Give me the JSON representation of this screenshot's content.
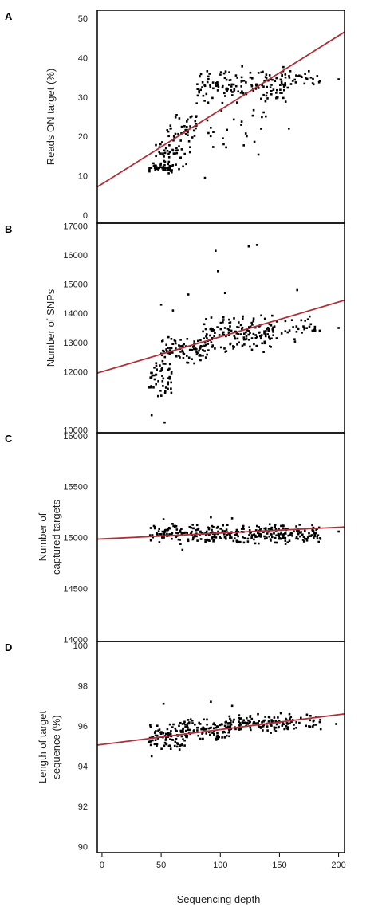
{
  "figure": {
    "xlabel": "Sequencing depth",
    "xticks": [
      0,
      50,
      100,
      150,
      200
    ],
    "xlim": [
      -4,
      205
    ]
  },
  "chart_data": [
    {
      "type": "scatter",
      "panel": "A",
      "ylabel": "Reads ON target (%)",
      "ylim": [
        -2,
        52
      ],
      "yticks": [
        0,
        10,
        20,
        30,
        40,
        50
      ],
      "fit_line": {
        "x": [
          -4,
          205
        ],
        "y": [
          7.2,
          46.5
        ]
      },
      "point_color": "#000000",
      "line_color": "#b03038",
      "clusters": [
        {
          "x_range": [
            40,
            60
          ],
          "y_range": [
            10,
            14
          ],
          "count": 45
        },
        {
          "x_range": [
            42,
            72
          ],
          "y_range": [
            11,
            20
          ],
          "count": 30
        },
        {
          "x_range": [
            55,
            80
          ],
          "y_range": [
            14,
            28
          ],
          "count": 55
        },
        {
          "x_range": [
            80,
            160
          ],
          "y_range": [
            28,
            38
          ],
          "count": 150
        },
        {
          "x_range": [
            88,
            140
          ],
          "y_range": [
            15,
            28
          ],
          "count": 25
        },
        {
          "x_range": [
            150,
            185
          ],
          "y_range": [
            32,
            37
          ],
          "count": 25
        }
      ],
      "extra_points": [
        {
          "x": 87,
          "y": 9.5
        },
        {
          "x": 158,
          "y": 22
        },
        {
          "x": 200,
          "y": 34.5
        }
      ]
    },
    {
      "type": "scatter",
      "panel": "B",
      "ylabel": "Number of SNPs",
      "ylim": [
        9900,
        17100
      ],
      "yticks": [
        10000,
        12000,
        13000,
        14000,
        15000,
        16000,
        17000
      ],
      "fit_line": {
        "x": [
          -4,
          205
        ],
        "y": [
          11950,
          14450
        ]
      },
      "point_color": "#000000",
      "line_color": "#b03038",
      "clusters": [
        {
          "x_range": [
            40,
            60
          ],
          "y_range": [
            11000,
            12500
          ],
          "count": 50
        },
        {
          "x_range": [
            50,
            90
          ],
          "y_range": [
            12200,
            13300
          ],
          "count": 90
        },
        {
          "x_range": [
            85,
            145
          ],
          "y_range": [
            12600,
            14000
          ],
          "count": 150
        },
        {
          "x_range": [
            140,
            185
          ],
          "y_range": [
            13000,
            14000
          ],
          "count": 40
        }
      ],
      "extra_points": [
        {
          "x": 42,
          "y": 10500
        },
        {
          "x": 53,
          "y": 10250
        },
        {
          "x": 50,
          "y": 14300
        },
        {
          "x": 60,
          "y": 14100
        },
        {
          "x": 73,
          "y": 14650
        },
        {
          "x": 96,
          "y": 16150
        },
        {
          "x": 98,
          "y": 15450
        },
        {
          "x": 104,
          "y": 14700
        },
        {
          "x": 124,
          "y": 16300
        },
        {
          "x": 131,
          "y": 16350
        },
        {
          "x": 165,
          "y": 14800
        },
        {
          "x": 200,
          "y": 13500
        }
      ]
    },
    {
      "type": "scatter",
      "panel": "C",
      "ylabel": "Number of captured targets",
      "ylim": [
        13980,
        16030
      ],
      "yticks": [
        14000,
        14500,
        15000,
        15500,
        16000
      ],
      "fit_line": {
        "x": [
          -4,
          205
        ],
        "y": [
          14985,
          15105
        ]
      },
      "point_color": "#000000",
      "line_color": "#b03038",
      "clusters": [
        {
          "x_range": [
            40,
            185
          ],
          "y_range": [
            14930,
            15140
          ],
          "count": 330
        }
      ],
      "extra_points": [
        {
          "x": 52,
          "y": 15180
        },
        {
          "x": 92,
          "y": 15200
        },
        {
          "x": 110,
          "y": 15190
        },
        {
          "x": 68,
          "y": 14880
        },
        {
          "x": 200,
          "y": 15060
        }
      ]
    },
    {
      "type": "scatter",
      "panel": "D",
      "ylabel": "Length of target sequence (%)",
      "ylim": [
        89.7,
        100.2
      ],
      "yticks": [
        90,
        92,
        94,
        96,
        98,
        100
      ],
      "fit_line": {
        "x": [
          -4,
          205
        ],
        "y": [
          95.05,
          96.6
        ]
      },
      "point_color": "#000000",
      "line_color": "#b03038",
      "clusters": [
        {
          "x_range": [
            40,
            70
          ],
          "y_range": [
            94.7,
            96.2
          ],
          "count": 80
        },
        {
          "x_range": [
            65,
            110
          ],
          "y_range": [
            95.2,
            96.4
          ],
          "count": 110
        },
        {
          "x_range": [
            105,
            160
          ],
          "y_range": [
            95.6,
            96.7
          ],
          "count": 110
        },
        {
          "x_range": [
            155,
            185
          ],
          "y_range": [
            95.8,
            96.6
          ],
          "count": 30
        }
      ],
      "extra_points": [
        {
          "x": 52,
          "y": 97.1
        },
        {
          "x": 92,
          "y": 97.2
        },
        {
          "x": 110,
          "y": 97.0
        },
        {
          "x": 42,
          "y": 94.5
        },
        {
          "x": 198,
          "y": 96.1
        }
      ]
    }
  ]
}
